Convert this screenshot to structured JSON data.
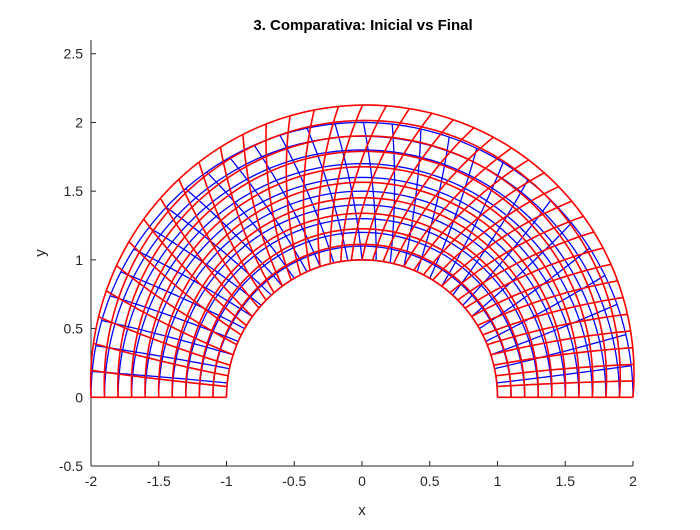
{
  "chart_data": {
    "type": "line",
    "title": "3. Comparativa: Inicial vs Final",
    "xlabel": "x",
    "ylabel": "y",
    "xlim": [
      -2,
      2
    ],
    "ylim": [
      -0.5,
      2.6
    ],
    "xticks": [
      -2,
      -1.5,
      -1,
      -0.5,
      0,
      0.5,
      1,
      1.5,
      2
    ],
    "xtick_labels": [
      "-2",
      "-1.5",
      "-1",
      "-0.5",
      "0",
      "0.5",
      "1",
      "1.5",
      "2"
    ],
    "yticks": [
      -0.5,
      0,
      0.5,
      1,
      1.5,
      2,
      2.5
    ],
    "ytick_labels": [
      "-0.5",
      "0",
      "0.5",
      "1",
      "1.5",
      "2",
      "2.5"
    ],
    "grid": false,
    "box": false,
    "series": [
      {
        "color": "#0000ff",
        "mesh": {
          "inner_radius": 1.0,
          "outer_radius": 2.0,
          "angle_range_deg": [
            0,
            180
          ],
          "radial_lines": 31,
          "arc_lines": 11,
          "base_axis": "upper-left"
        }
      },
      {
        "color": "#ff0000",
        "mesh": {
          "inner_radius": 1.0,
          "outer_radius_at_0deg": 2.0,
          "outer_radius_at_90deg": 2.13,
          "angle_range_deg": [
            0,
            180
          ],
          "radial_lines": 41,
          "arc_lines": 11,
          "twist_at_outer_deg": 14
        }
      }
    ]
  }
}
